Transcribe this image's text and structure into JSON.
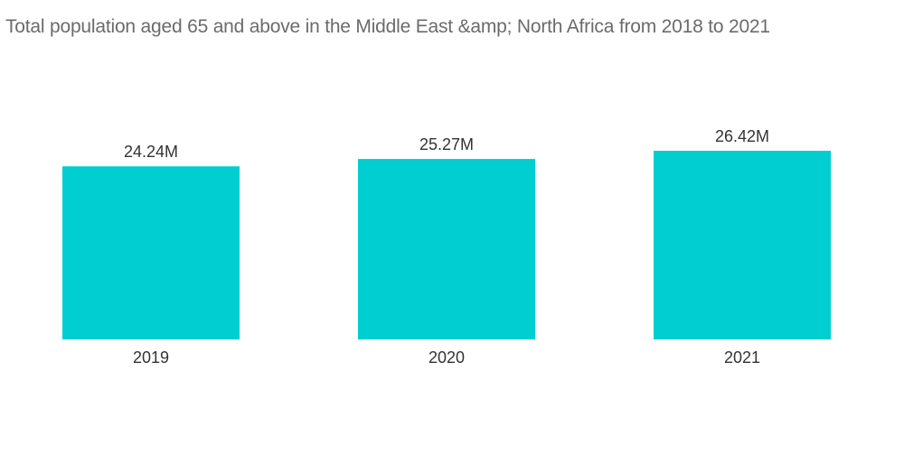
{
  "title": "Total population aged 65 and above in the Middle East &amp; North Africa from 2018 to 2021",
  "chart_data": {
    "type": "bar",
    "title": "Total population aged 65 and above in the Middle East &amp; North Africa from 2018 to 2021",
    "categories": [
      "2019",
      "2020",
      "2021"
    ],
    "values": [
      24.24,
      25.27,
      26.42
    ],
    "value_labels": [
      "24.24M",
      "25.27M",
      "26.42M"
    ],
    "unit": "M",
    "xlabel": "",
    "ylabel": "",
    "ylim": [
      0,
      26.42
    ],
    "grid": false,
    "legend": "none",
    "bar_color": "#00ced1"
  }
}
